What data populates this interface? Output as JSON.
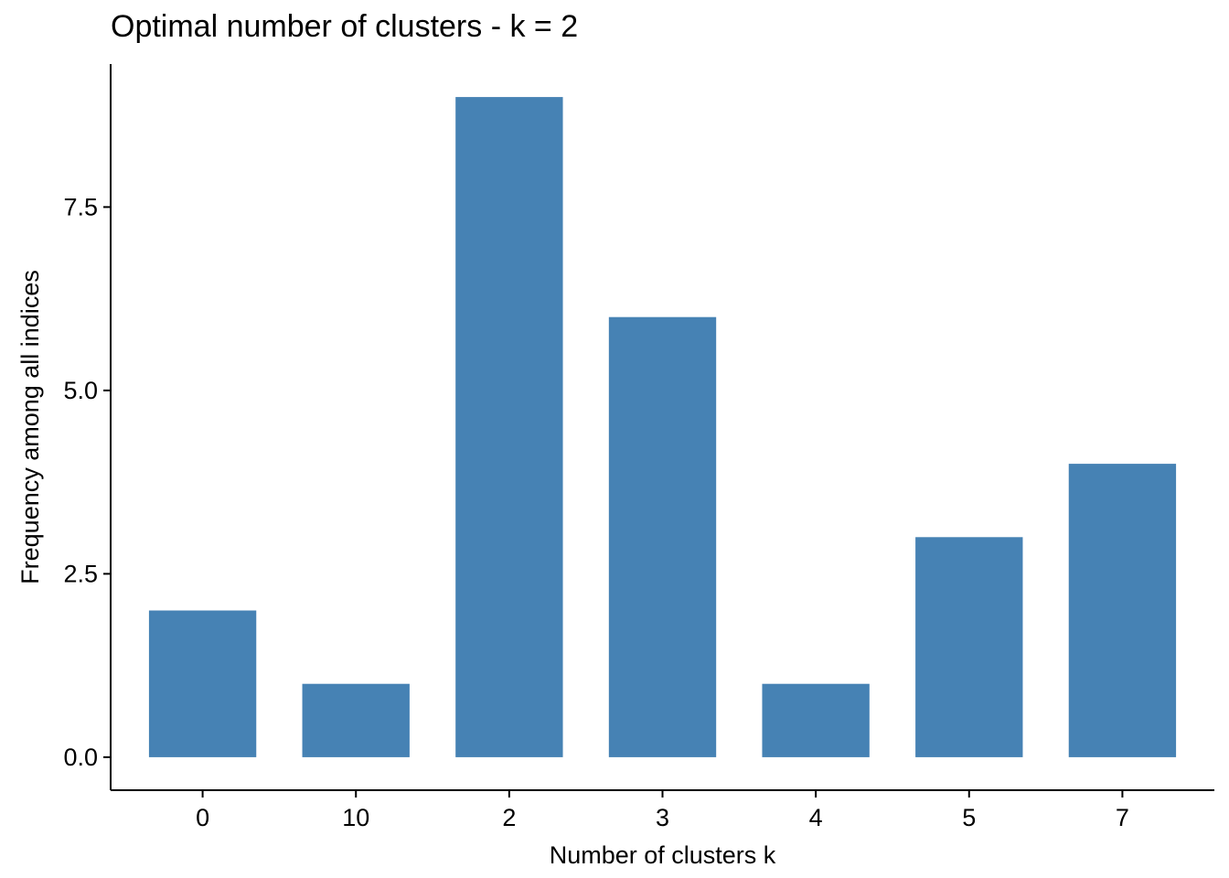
{
  "chart_data": {
    "type": "bar",
    "title": "Optimal number of clusters - k = 2",
    "xlabel": "Number of clusters k",
    "ylabel": "Frequency among all indices",
    "categories": [
      "0",
      "10",
      "2",
      "3",
      "4",
      "5",
      "7"
    ],
    "values": [
      2,
      1,
      9,
      6,
      1,
      3,
      4
    ],
    "ylim": [
      -0.45,
      9.45
    ],
    "yticks": [
      0,
      2.5,
      5,
      7.5
    ],
    "ytick_labels": [
      "0.0",
      "2.5",
      "5.0",
      "7.5"
    ],
    "grid": false,
    "legend": "none",
    "bar_color": "#4682B4"
  }
}
